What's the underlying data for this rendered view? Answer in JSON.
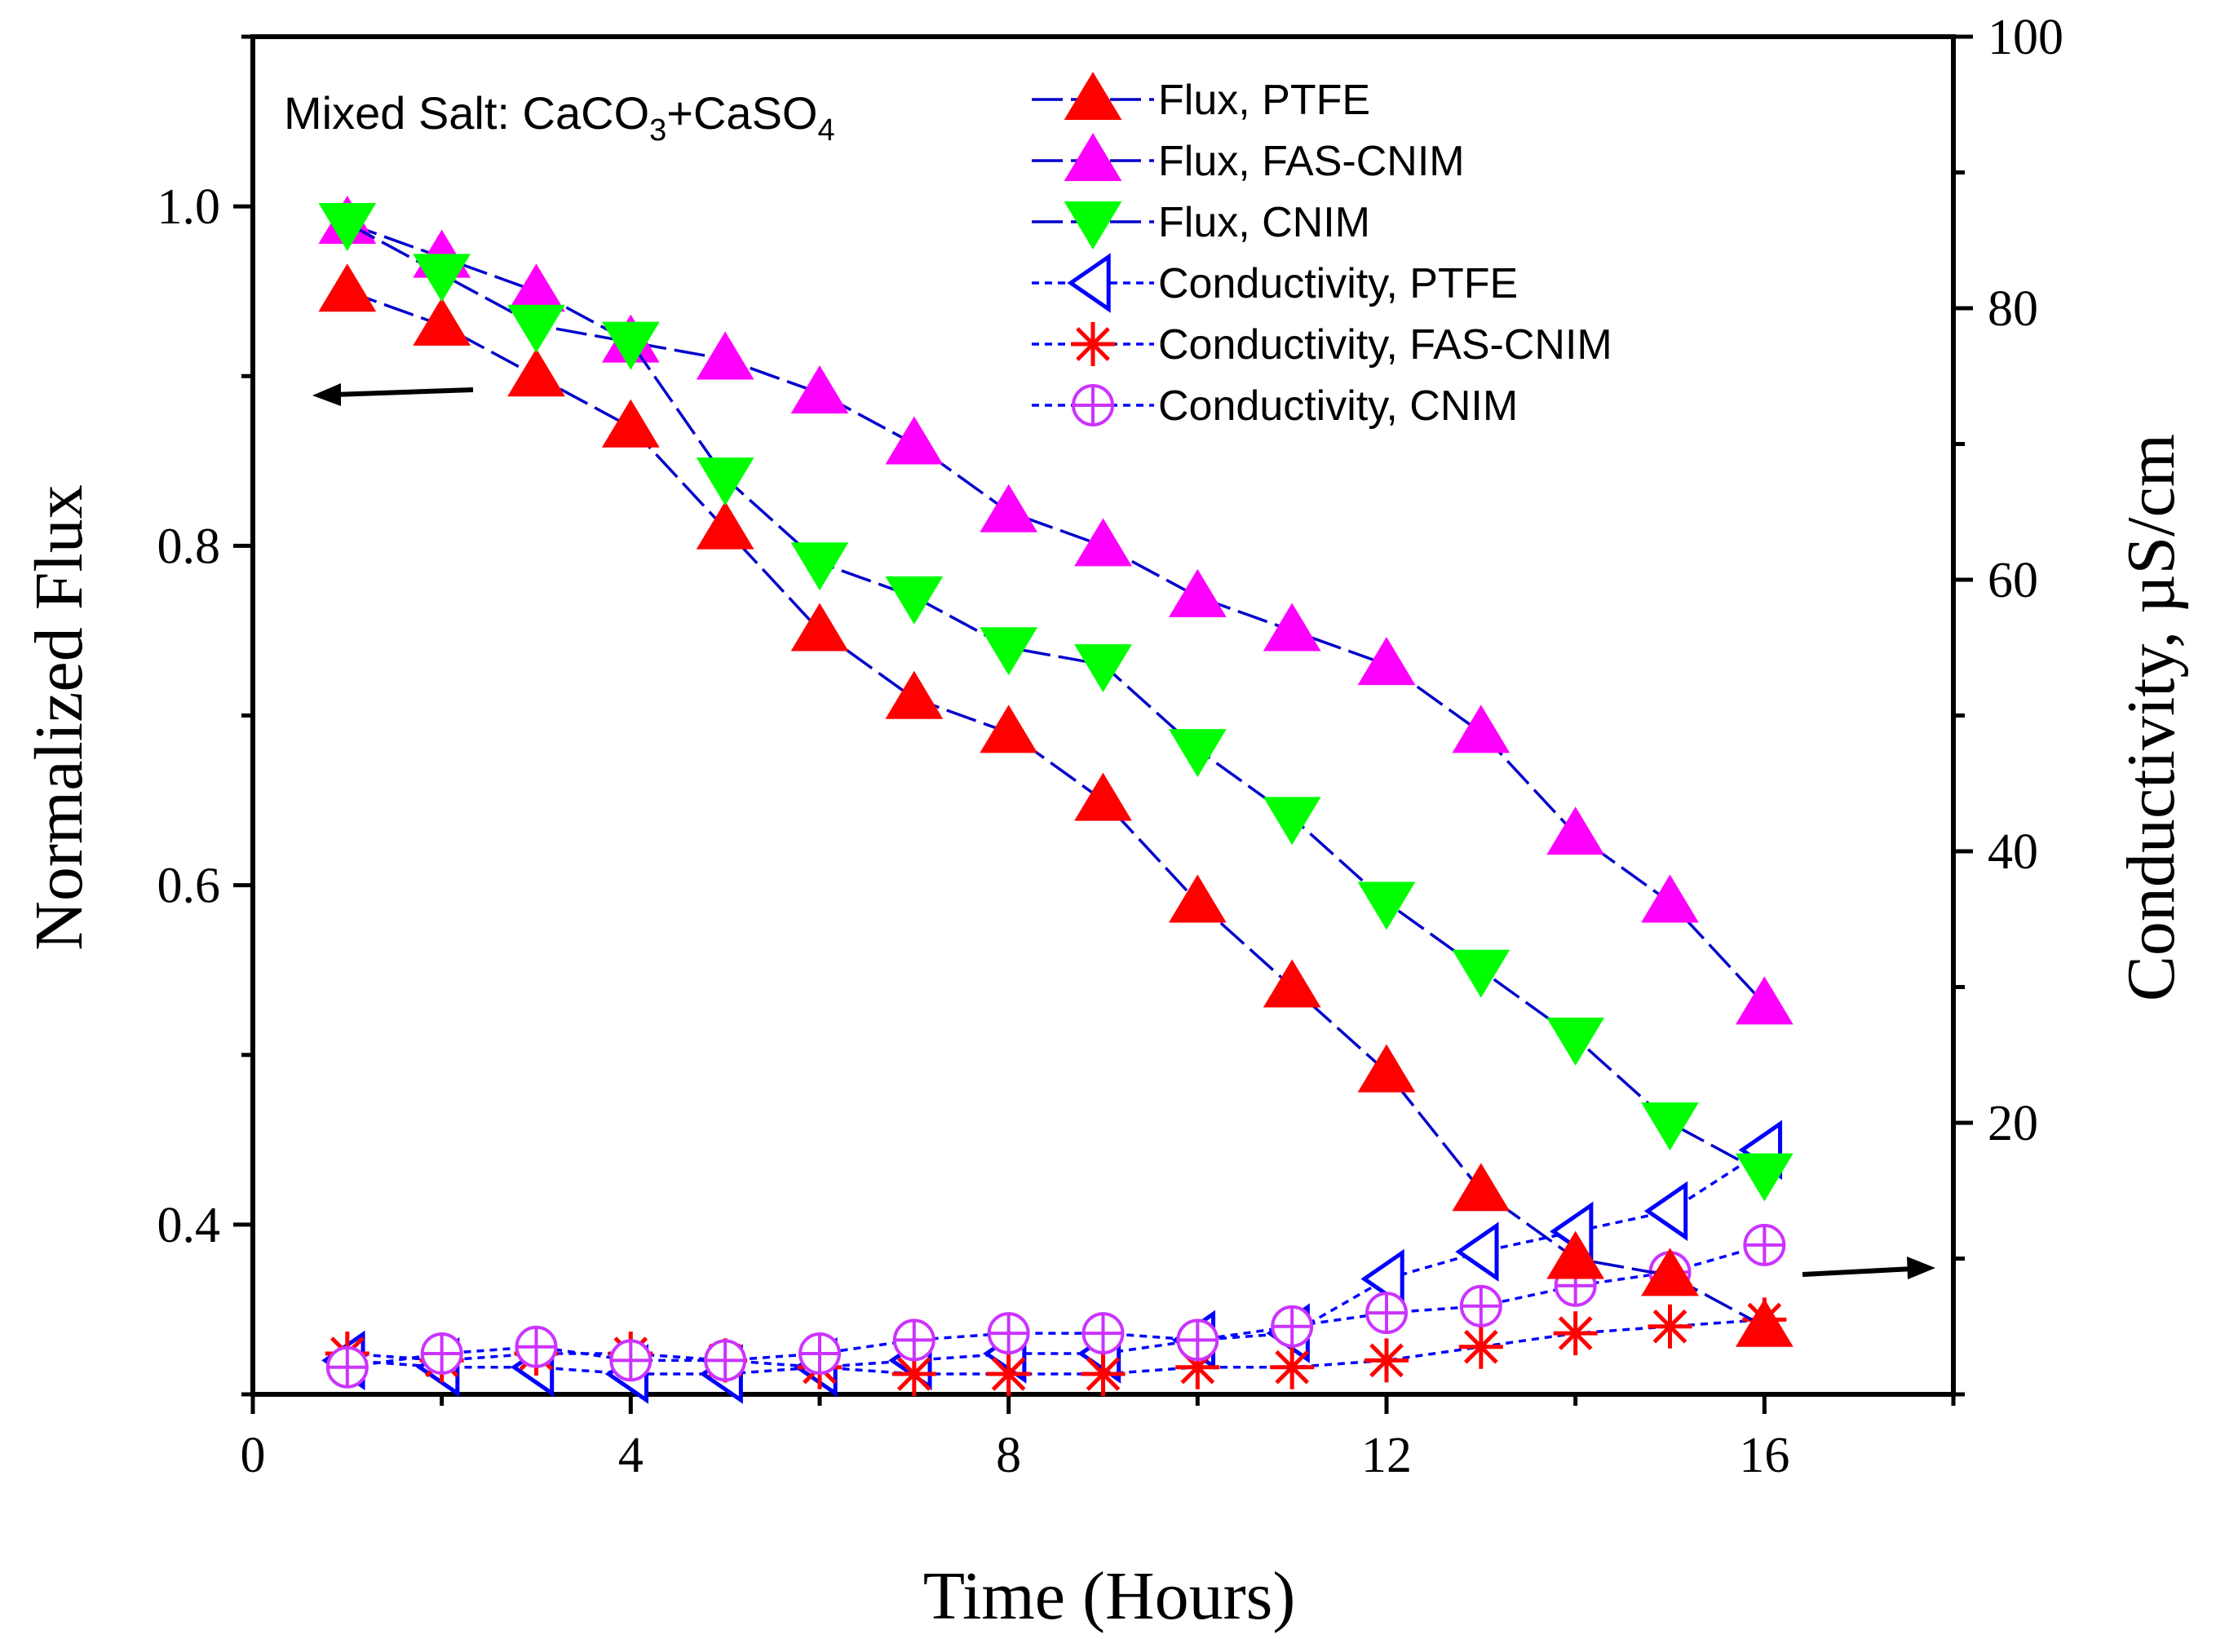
{
  "chart_data": {
    "type": "line",
    "title": "",
    "xlabel": "Time (Hours)",
    "ylabel": "Normalized Flux",
    "y2label": "Conductivity, µS/cm",
    "xlim": [
      0,
      18
    ],
    "ylim": [
      0.3,
      1.1
    ],
    "y2lim": [
      0,
      100
    ],
    "x_ticks": [
      0,
      4,
      8,
      12,
      16
    ],
    "y_ticks": [
      0.4,
      0.6,
      0.8,
      1.0
    ],
    "y2_ticks": [
      20,
      40,
      60,
      80,
      100
    ],
    "x_tick_labels": [
      "0",
      "4",
      "8",
      "12",
      "16"
    ],
    "y_tick_labels": [
      "0.4",
      "0.6",
      "0.8",
      "1.0"
    ],
    "y2_tick_labels": [
      "20",
      "40",
      "60",
      "80",
      "100"
    ],
    "grid": false,
    "legend_position": "top-right",
    "annotation": {
      "prefix": "Mixed Salt: CaCO",
      "sub1": "3",
      "mid": "+CaSO",
      "sub2": "4"
    },
    "x": [
      1,
      2,
      3,
      4,
      5,
      6,
      7,
      8,
      9,
      10,
      11,
      12,
      13,
      14,
      15,
      16
    ],
    "series": [
      {
        "name": "Flux, PTFE",
        "axis": "left",
        "marker": "triangle-up",
        "fill": "#ff0000",
        "line": "#0000cc",
        "dash": "long",
        "values": [
          0.95,
          0.93,
          0.9,
          0.87,
          0.81,
          0.75,
          0.71,
          0.69,
          0.65,
          0.59,
          0.54,
          0.49,
          0.42,
          0.38,
          0.37,
          0.34
        ]
      },
      {
        "name": "Flux, FAS-CNIM",
        "axis": "left",
        "marker": "triangle-up",
        "fill": "#ff00ff",
        "line": "#0000cc",
        "dash": "long",
        "values": [
          0.99,
          0.97,
          0.95,
          0.92,
          0.91,
          0.89,
          0.86,
          0.82,
          0.8,
          0.77,
          0.75,
          0.73,
          0.69,
          0.63,
          0.59,
          0.53
        ]
      },
      {
        "name": "Flux, CNIM",
        "axis": "left",
        "marker": "triangle-down",
        "fill": "#00ff00",
        "line": "#0000cc",
        "dash": "long",
        "values": [
          0.99,
          0.96,
          0.93,
          0.92,
          0.84,
          0.79,
          0.77,
          0.74,
          0.73,
          0.68,
          0.64,
          0.59,
          0.55,
          0.51,
          0.46,
          0.43
        ]
      },
      {
        "name": "Conductivity, PTFE",
        "axis": "right",
        "marker": "triangle-left",
        "fill": "none",
        "stroke": "#0000ff",
        "line": "#0000ff",
        "dash": "short",
        "values": [
          2.5,
          2.0,
          2.0,
          1.5,
          1.5,
          2.0,
          2.5,
          3.0,
          3.0,
          4.0,
          4.5,
          8.5,
          10.5,
          12.0,
          13.5,
          18.0
        ]
      },
      {
        "name": "Conductivity, FAS-CNIM",
        "axis": "right",
        "marker": "asterisk",
        "fill": "none",
        "stroke": "#ff0000",
        "line": "#0000ff",
        "dash": "short",
        "values": [
          3.0,
          2.5,
          3.0,
          3.0,
          2.5,
          2.0,
          1.5,
          1.5,
          1.5,
          2.0,
          2.0,
          2.5,
          3.5,
          4.5,
          5.0,
          5.5
        ]
      },
      {
        "name": "Conductivity, CNIM",
        "axis": "right",
        "marker": "circle-plus",
        "fill": "none",
        "stroke": "#cc33ff",
        "line": "#0000ff",
        "dash": "short",
        "values": [
          2.0,
          3.0,
          3.5,
          2.5,
          2.5,
          3.0,
          4.0,
          4.5,
          4.5,
          4.0,
          5.0,
          6.0,
          6.5,
          8.0,
          9.0,
          11.0
        ]
      }
    ]
  }
}
